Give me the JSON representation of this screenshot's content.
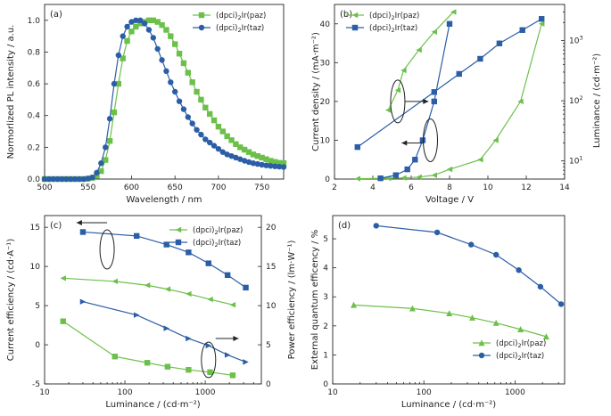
{
  "colors": {
    "paz": "#6cc04a",
    "taz": "#2b5ea6",
    "axis": "#222222"
  },
  "chart_data": [
    {
      "panel": "(a)",
      "type": "line",
      "xlabel": "Wavelength / nm",
      "ylabel": "Normorlized PL intensity / a.u.",
      "xlim": [
        500,
        775
      ],
      "ylim": [
        0,
        1.1
      ],
      "xticks": [
        500,
        550,
        600,
        650,
        700,
        750
      ],
      "yticks": [
        0.0,
        0.2,
        0.4,
        0.6,
        0.8,
        1.0
      ],
      "xtick_labels": [
        "500",
        "550",
        "600",
        "650",
        "700",
        "750"
      ],
      "ytick_labels": [
        "0.0",
        "0.2",
        "0.4",
        "0.6",
        "0.8",
        "1.0"
      ],
      "legend_position": "top-right",
      "series": [
        {
          "key": "paz",
          "name_main": "(dpci)",
          "name_sub": "2",
          "name_tail": "Ir(paz)",
          "marker": "square",
          "x": [
            500,
            505,
            510,
            515,
            520,
            525,
            530,
            535,
            540,
            545,
            550,
            555,
            560,
            565,
            570,
            575,
            580,
            585,
            590,
            595,
            600,
            605,
            610,
            615,
            620,
            625,
            630,
            635,
            640,
            645,
            650,
            655,
            660,
            665,
            670,
            675,
            680,
            685,
            690,
            695,
            700,
            705,
            710,
            715,
            720,
            725,
            730,
            735,
            740,
            745,
            750,
            755,
            760,
            765,
            770,
            775
          ],
          "y": [
            0,
            0,
            0,
            0,
            0,
            0,
            0,
            0,
            0,
            0,
            0.003,
            0.008,
            0.02,
            0.05,
            0.12,
            0.24,
            0.42,
            0.6,
            0.76,
            0.87,
            0.93,
            0.96,
            0.98,
            0.99,
            1.0,
            1.0,
            0.99,
            0.97,
            0.94,
            0.9,
            0.85,
            0.79,
            0.73,
            0.67,
            0.61,
            0.55,
            0.5,
            0.45,
            0.41,
            0.37,
            0.33,
            0.3,
            0.27,
            0.245,
            0.22,
            0.2,
            0.185,
            0.17,
            0.155,
            0.145,
            0.135,
            0.125,
            0.115,
            0.108,
            0.102,
            0.1
          ]
        },
        {
          "key": "taz",
          "name_main": "(dpci)",
          "name_sub": "2",
          "name_tail": "Ir(taz)",
          "marker": "circle",
          "x": [
            500,
            505,
            510,
            515,
            520,
            525,
            530,
            535,
            540,
            545,
            550,
            555,
            560,
            565,
            570,
            575,
            580,
            585,
            590,
            595,
            600,
            605,
            610,
            615,
            620,
            625,
            630,
            635,
            640,
            645,
            650,
            655,
            660,
            665,
            670,
            675,
            680,
            685,
            690,
            695,
            700,
            705,
            710,
            715,
            720,
            725,
            730,
            735,
            740,
            745,
            750,
            755,
            760,
            765,
            770,
            775
          ],
          "y": [
            0,
            0,
            0,
            0,
            0,
            0,
            0,
            0,
            0,
            0,
            0.003,
            0.01,
            0.04,
            0.1,
            0.2,
            0.38,
            0.6,
            0.78,
            0.9,
            0.96,
            0.99,
            1.0,
            1.0,
            0.98,
            0.94,
            0.89,
            0.82,
            0.75,
            0.68,
            0.61,
            0.55,
            0.49,
            0.44,
            0.39,
            0.35,
            0.31,
            0.28,
            0.25,
            0.23,
            0.21,
            0.19,
            0.17,
            0.155,
            0.145,
            0.135,
            0.125,
            0.115,
            0.107,
            0.1,
            0.095,
            0.09,
            0.086,
            0.083,
            0.08,
            0.078,
            0.076
          ]
        }
      ]
    },
    {
      "panel": "(b)",
      "type": "line",
      "xlabel": "Voltage / V",
      "ylabel": "Current density / (mA·m⁻²)",
      "ylabel_right": "Luminance / (cd·m⁻²)",
      "xlim": [
        2,
        14
      ],
      "ylim": [
        0,
        45
      ],
      "ylim_right_log": [
        5,
        4000
      ],
      "xticks": [
        2,
        4,
        6,
        8,
        10,
        12,
        14
      ],
      "yticks": [
        0,
        10,
        20,
        30,
        40
      ],
      "xtick_labels": [
        "2",
        "4",
        "6",
        "8",
        "10",
        "12",
        "14"
      ],
      "ytick_labels": [
        "0",
        "10",
        "20",
        "30",
        "40"
      ],
      "yticks_right": [
        10,
        100,
        1000
      ],
      "yticks_right_main": [
        "10",
        "10",
        "10"
      ],
      "yticks_right_exp": [
        "1",
        "2",
        "3"
      ],
      "legend_position": "top-left",
      "series": [
        {
          "key": "paz",
          "name_main": "(dpci)",
          "name_sub": "2",
          "name_tail": "Ir(paz)",
          "marker": "triangle-left",
          "axis": "left",
          "x": [
            3.2,
            4.8,
            5.6,
            6.4,
            7.2,
            8.0,
            9.6,
            10.4,
            11.7,
            12.8
          ],
          "y": [
            0.1,
            0.2,
            0.3,
            0.5,
            1.0,
            2.5,
            5.0,
            10.0,
            20.0,
            40.0
          ]
        },
        {
          "key": "paz",
          "name_main": "(dpci)",
          "name_sub": "2",
          "name_tail": "Ir(paz)",
          "marker": "triangle-left",
          "axis": "right",
          "x": [
            4.8,
            5.3,
            5.6,
            6.4,
            7.2,
            8.2
          ],
          "y": [
            70,
            150,
            320,
            700,
            1400,
            3000
          ]
        },
        {
          "key": "taz",
          "name_main": "(dpci)",
          "name_sub": "2",
          "name_tail": "Ir(taz)",
          "marker": "square",
          "axis": "left",
          "x": [
            4.4,
            5.2,
            5.8,
            6.2,
            6.6,
            7.2,
            8.0
          ],
          "y": [
            0.2,
            1.0,
            2.5,
            5.0,
            10.0,
            20.0,
            40.0
          ]
        },
        {
          "key": "taz",
          "name_main": "(dpci)",
          "name_sub": "2",
          "name_tail": "Ir(taz)",
          "marker": "square",
          "axis": "right",
          "x": [
            3.2,
            7.2,
            8.5,
            9.6,
            10.6,
            11.8,
            12.8
          ],
          "y": [
            17,
            140,
            280,
            500,
            900,
            1500,
            2300
          ]
        }
      ],
      "arrows": [
        {
          "ellipse_x": 5.3,
          "ellipse_y": 20,
          "to_x": 6.8,
          "dir": "right"
        },
        {
          "ellipse_x": 7.0,
          "ellipse_y": 10,
          "to_x": 5.5,
          "dir": "left"
        }
      ]
    },
    {
      "panel": "(c)",
      "type": "line",
      "xlabel": "Luminance / (cd·m⁻²)",
      "ylabel": "Current efficiency / (cd·A⁻¹)",
      "ylabel_right": "Power efficiency / (lm·W⁻¹)",
      "xlim_log": [
        10,
        5000
      ],
      "ylim": [
        -5,
        16.5
      ],
      "ylim_right": [
        0,
        21.5
      ],
      "xticks": [
        10,
        100,
        1000
      ],
      "xtick_labels": [
        "10",
        "100",
        "1000"
      ],
      "yticks": [
        -5,
        0,
        5,
        10,
        15
      ],
      "ytick_labels": [
        "-5",
        "0",
        "5",
        "10",
        "15"
      ],
      "yticks_right": [
        0,
        5,
        10,
        15,
        20
      ],
      "ytick_labels_right": [
        "0",
        "5",
        "10",
        "15",
        "20"
      ],
      "legend_position": "top-right",
      "series": [
        {
          "key": "paz",
          "name_main": "(dpci)",
          "name_sub": "2",
          "name_tail": "Ir(paz)",
          "marker": "triangle-left",
          "axis": "left",
          "x": [
            17,
            75,
            190,
            340,
            620,
            1150,
            2200
          ],
          "y": [
            8.5,
            8.1,
            7.6,
            7.1,
            6.5,
            5.8,
            5.1
          ]
        },
        {
          "key": "paz",
          "name_main": "(dpci)",
          "name_sub": "2",
          "name_tail": "Ir(paz)",
          "marker": "square",
          "axis": "right",
          "x": [
            17,
            75,
            190,
            340,
            620,
            1150,
            2200
          ],
          "y": [
            8.0,
            3.5,
            2.7,
            2.2,
            1.8,
            1.5,
            1.1
          ]
        },
        {
          "key": "taz",
          "name_main": "(dpci)",
          "name_sub": "2",
          "name_tail": "Ir(taz)",
          "marker": "square",
          "axis": "left",
          "x": [
            30,
            140,
            330,
            620,
            1100,
            1900,
            3200
          ],
          "y": [
            14.4,
            13.9,
            12.8,
            11.8,
            10.4,
            8.9,
            7.3
          ]
        },
        {
          "key": "taz",
          "name_main": "(dpci)",
          "name_sub": "2",
          "name_tail": "Ir(taz)",
          "marker": "triangle-right",
          "axis": "right",
          "x": [
            30,
            140,
            330,
            620,
            1100,
            1900,
            3200
          ],
          "y": [
            10.5,
            8.8,
            7.1,
            5.8,
            4.9,
            3.7,
            2.8
          ]
        }
      ]
    },
    {
      "panel": "(d)",
      "type": "line",
      "xlabel": "Luminance / (cd·m⁻²)",
      "ylabel": "External quantum efficency / %",
      "xlim_log": [
        10,
        3500
      ],
      "ylim": [
        0,
        5.8
      ],
      "xticks": [
        10,
        100,
        1000
      ],
      "xtick_labels": [
        "10",
        "100",
        "1000"
      ],
      "yticks": [
        0,
        1,
        2,
        3,
        4,
        5
      ],
      "ytick_labels": [
        "0",
        "1",
        "2",
        "3",
        "4",
        "5"
      ],
      "legend_position": "top-right",
      "series": [
        {
          "key": "paz",
          "name_main": "(dpci)",
          "name_sub": "2",
          "name_tail": "Ir(paz)",
          "marker": "triangle-up",
          "x": [
            17,
            75,
            190,
            340,
            620,
            1150,
            2200
          ],
          "y": [
            2.72,
            2.6,
            2.43,
            2.28,
            2.1,
            1.88,
            1.63
          ]
        },
        {
          "key": "taz",
          "name_main": "(dpci)",
          "name_sub": "2",
          "name_tail": "Ir(taz)",
          "marker": "circle",
          "x": [
            30,
            140,
            330,
            620,
            1100,
            1900,
            3200
          ],
          "y": [
            5.45,
            5.22,
            4.8,
            4.45,
            3.92,
            3.35,
            2.75
          ]
        }
      ]
    }
  ]
}
